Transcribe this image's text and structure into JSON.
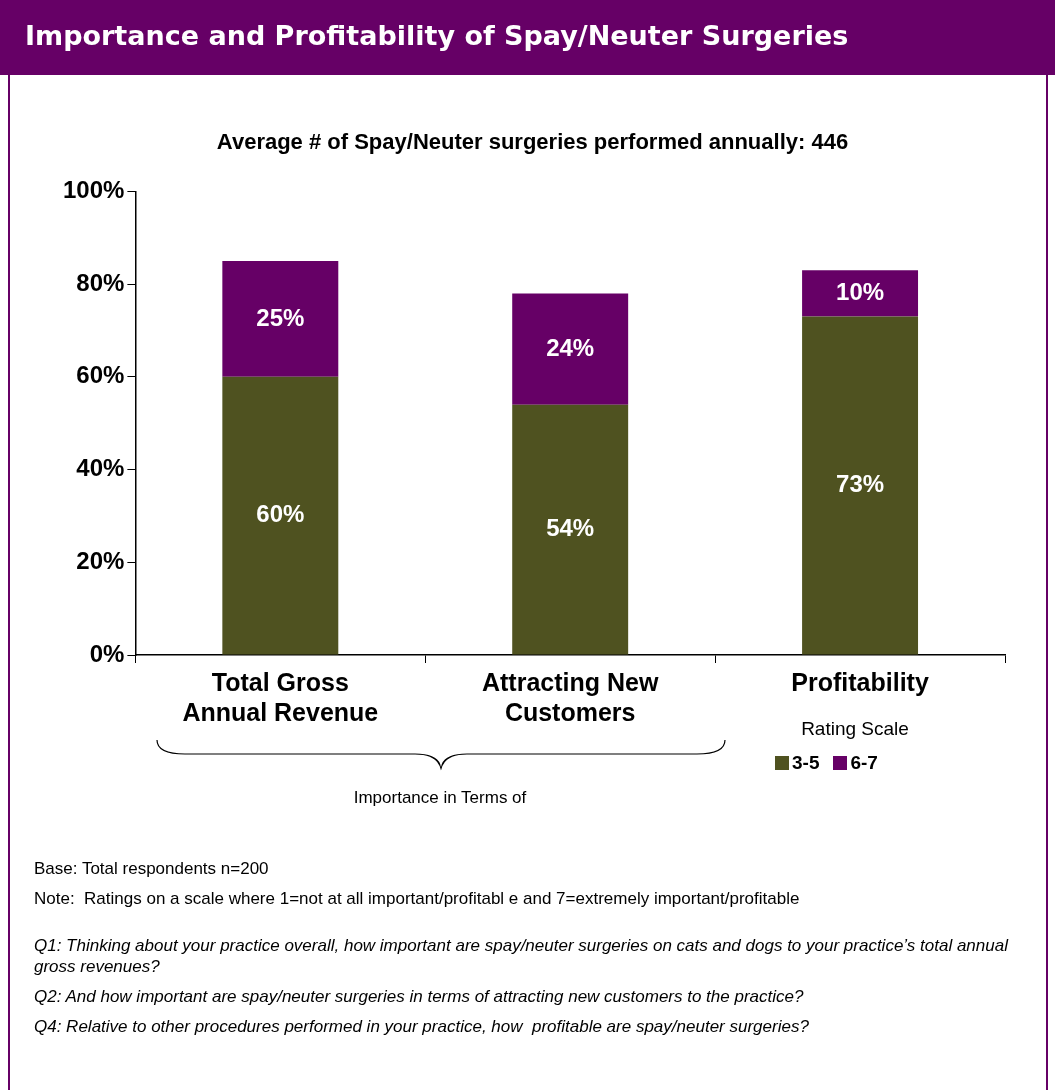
{
  "chart_data": {
    "type": "bar",
    "title": "Importance and Profitability of Spay/Neuter Surgeries",
    "subtitle": "Average # of Spay/Neuter surgeries performed annually: 446",
    "categories": [
      "Total Gross Annual Revenue",
      "Attracting New Customers",
      "Profitability"
    ],
    "stacked": true,
    "legend": "bottom right",
    "legend_title": "Rating Scale",
    "series": [
      {
        "name": "3-5",
        "color": "#4f5220",
        "values": [
          60,
          54,
          73
        ],
        "value_labels": [
          "60%",
          "54%",
          "73%"
        ]
      },
      {
        "name": "6-7",
        "color": "#660066",
        "values": [
          25,
          24,
          10
        ],
        "value_labels": [
          "25%",
          "24%",
          "10%"
        ]
      }
    ],
    "ylim": [
      0,
      100
    ],
    "yticks": [
      {
        "value": 0,
        "label": "0%"
      },
      {
        "value": 20,
        "label": "20%"
      },
      {
        "value": 40,
        "label": "40%"
      },
      {
        "value": 60,
        "label": "60%"
      },
      {
        "value": 80,
        "label": "80%"
      },
      {
        "value": 100,
        "label": "100%"
      }
    ],
    "grid": false,
    "annotations": [
      "Importance in Terms of",
      "Base: Total respondents n=200",
      "Note:  Ratings on a scale where 1=not at all important/profitabl e and 7=extremely important/profitable",
      "Q1: Thinking about your practice overall, how important are spay/neuter surgeries on cats and dogs to your practice’s total annual gross revenues?",
      "Q2: And how important are spay/neuter surgeries in terms of attracting new customers to the practice?",
      "Q4: Relative to other procedures performed in your practice, how  profitable are spay/neuter surgeries?"
    ]
  }
}
